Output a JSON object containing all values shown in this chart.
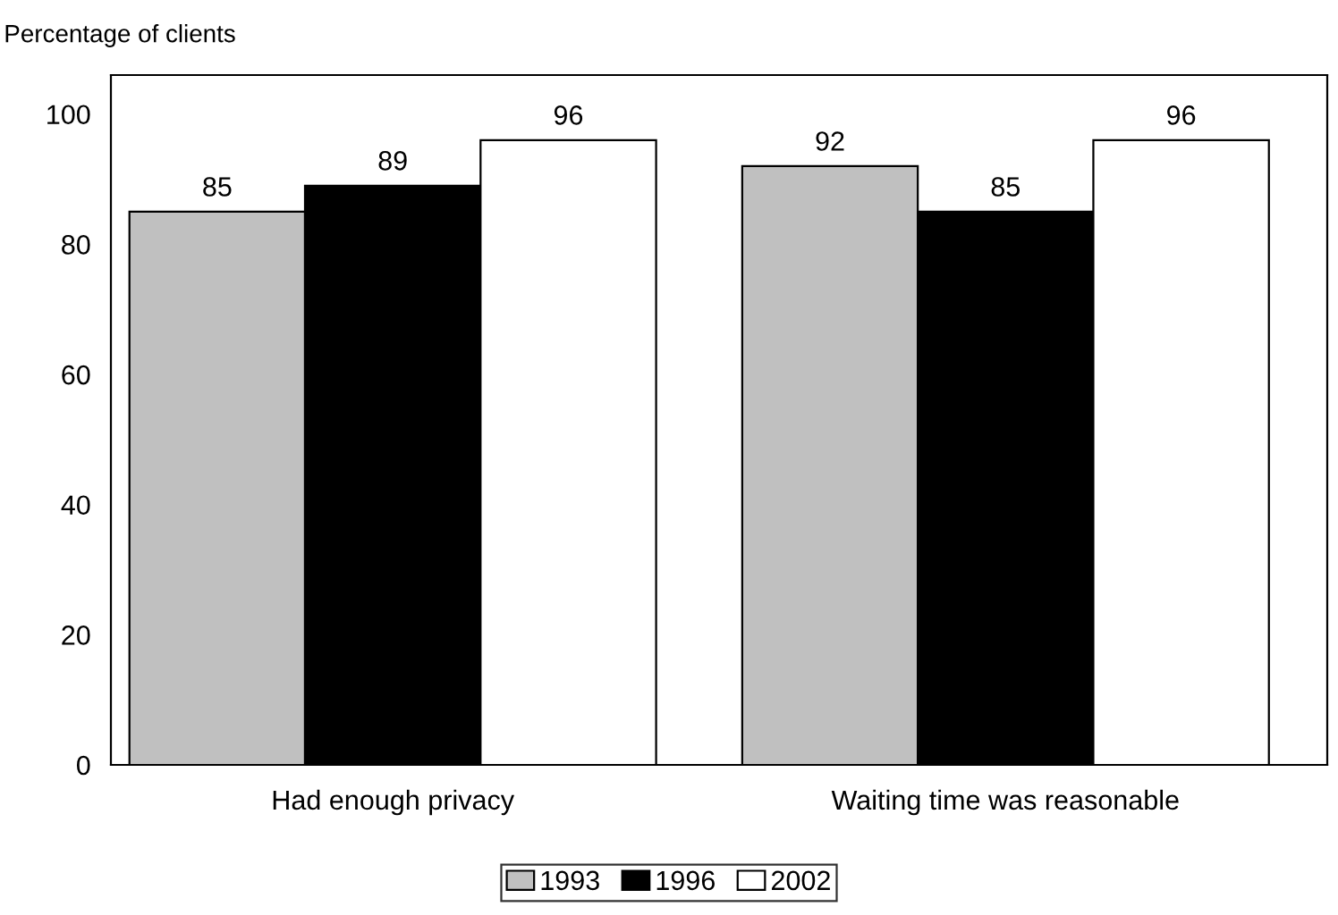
{
  "chart_data": {
    "type": "bar",
    "ylabel": "Percentage of clients",
    "categories": [
      "Had enough privacy",
      "Waiting time was reasonable"
    ],
    "series": [
      {
        "name": "1993",
        "color": "#c0c0c0",
        "values": [
          85,
          92
        ]
      },
      {
        "name": "1996",
        "color": "#000000",
        "values": [
          89,
          85
        ]
      },
      {
        "name": "2002",
        "color": "#ffffff",
        "values": [
          96,
          96
        ]
      }
    ],
    "ylim": [
      0,
      106
    ],
    "yticks": [
      0,
      20,
      40,
      60,
      80,
      100
    ],
    "grid": false,
    "legend": "bottom",
    "data_labels": true
  }
}
